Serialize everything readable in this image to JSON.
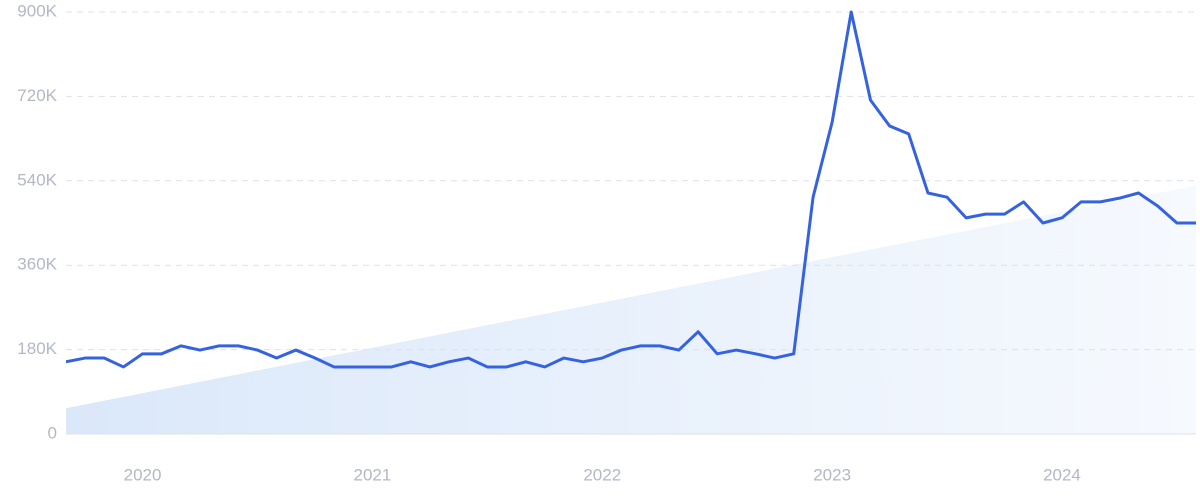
{
  "chart_data": {
    "type": "line",
    "x": [
      2019.667,
      2019.75,
      2019.833,
      2019.917,
      2020,
      2020.083,
      2020.167,
      2020.25,
      2020.333,
      2020.417,
      2020.5,
      2020.583,
      2020.667,
      2020.75,
      2020.833,
      2020.917,
      2021,
      2021.083,
      2021.167,
      2021.25,
      2021.333,
      2021.417,
      2021.5,
      2021.583,
      2021.667,
      2021.75,
      2021.833,
      2021.917,
      2022,
      2022.083,
      2022.167,
      2022.25,
      2022.333,
      2022.417,
      2022.5,
      2022.583,
      2022.667,
      2022.75,
      2022.833,
      2022.917,
      2023,
      2023.083,
      2023.167,
      2023.25,
      2023.333,
      2023.417,
      2023.5,
      2023.583,
      2023.667,
      2023.75,
      2023.833,
      2023.917,
      2024,
      2024.083,
      2024.167,
      2024.25,
      2024.333,
      2024.417,
      2024.5,
      2024.583
    ],
    "series": [
      {
        "color": "#3563e0",
        "values": [
          154000,
          162000,
          162000,
          143000,
          171000,
          171000,
          188000,
          179000,
          188000,
          188000,
          179000,
          162000,
          179000,
          162000,
          143000,
          143000,
          143000,
          143000,
          154000,
          143000,
          154000,
          162000,
          143000,
          143000,
          154000,
          143000,
          162000,
          154000,
          162000,
          179000,
          188000,
          188000,
          179000,
          218000,
          171000,
          179000,
          171000,
          162000,
          171000,
          505000,
          665000,
          900000,
          712000,
          657000,
          640000,
          514000,
          505000,
          461000,
          469000,
          469000,
          495000,
          450000,
          461000,
          495000,
          495000,
          503000,
          514000,
          486000,
          450000,
          450000
        ]
      }
    ],
    "trend": {
      "x": [
        2019.667,
        2024.583
      ],
      "values": [
        55000,
        530000
      ],
      "color": "#dbe8fa"
    },
    "xlim": [
      2019.667,
      2024.583
    ],
    "xticks": [
      2020,
      2021,
      2022,
      2023,
      2024
    ],
    "ylim": [
      0,
      900000
    ],
    "yticks": [
      0,
      {
        "value": 180000,
        "label": "180K"
      },
      {
        "value": 360000,
        "label": "360K"
      },
      {
        "value": 540000,
        "label": "540K"
      },
      {
        "value": 720000,
        "label": "720K"
      },
      {
        "value": 900000,
        "label": "900K"
      }
    ],
    "grid": true
  }
}
